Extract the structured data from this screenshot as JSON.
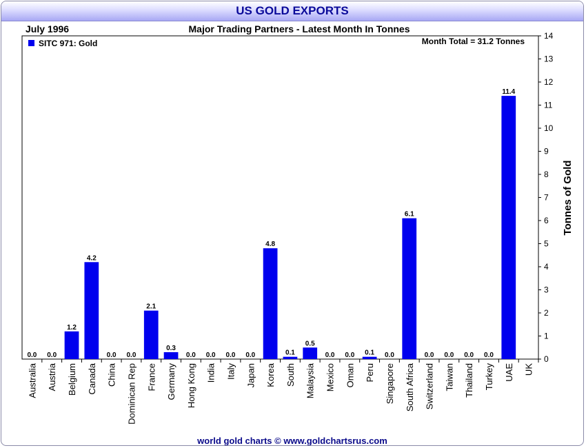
{
  "header": {
    "title": "US GOLD EXPORTS"
  },
  "footer": {
    "credit": "world gold charts © www.goldchartsrus.com"
  },
  "colors": {
    "bar": "#0000ee",
    "title_text": "#0a0a9a"
  },
  "chart_data": {
    "type": "bar",
    "title": "Major Trading Partners - Latest Month In Tonnes",
    "period_label": "July 1996",
    "annotation": "Month Total = 31.2 Tonnes",
    "legend": "SITC 971: Gold",
    "legend_placement": "top-left",
    "xlabel": "",
    "ylabel": "Tonnes of Gold",
    "ylim": [
      0,
      14
    ],
    "yticks": [
      "0",
      "1",
      "2",
      "3",
      "4",
      "5",
      "6",
      "7",
      "8",
      "9",
      "10",
      "11",
      "12",
      "13",
      "14"
    ],
    "categories": [
      "Australia",
      "Austria",
      "Belgium",
      "Canada",
      "China",
      "Dominican Rep",
      "France",
      "Germany",
      "Hong Kong",
      "India",
      "Italy",
      "Japan",
      "Korea",
      "South",
      "Malaysia",
      "Mexico",
      "Oman",
      "Peru",
      "Singapore",
      "South Africa",
      "Switzerland",
      "Taiwan",
      "Thailand",
      "Turkey",
      "UAE",
      "UK"
    ],
    "values": [
      0.0,
      0.0,
      1.2,
      4.2,
      0.0,
      0.0,
      2.1,
      0.3,
      0.0,
      0.0,
      0.0,
      0.0,
      4.8,
      0.1,
      0.5,
      0.0,
      0.0,
      0.1,
      0.0,
      6.1,
      0.0,
      0.0,
      0.0,
      0.0,
      11.4,
      null
    ],
    "data_labels": [
      "0.0",
      "0.0",
      "1.2",
      "4.2",
      "0.0",
      "0.0",
      "2.1",
      "0.3",
      "0.0",
      "0.0",
      "0.0",
      "0.0",
      "4.8",
      "0.1",
      "0.5",
      "0.0",
      "0.0",
      "0.1",
      "0.0",
      "6.1",
      "0.0",
      "0.0",
      "0.0",
      "0.0",
      "11.4",
      ""
    ]
  }
}
